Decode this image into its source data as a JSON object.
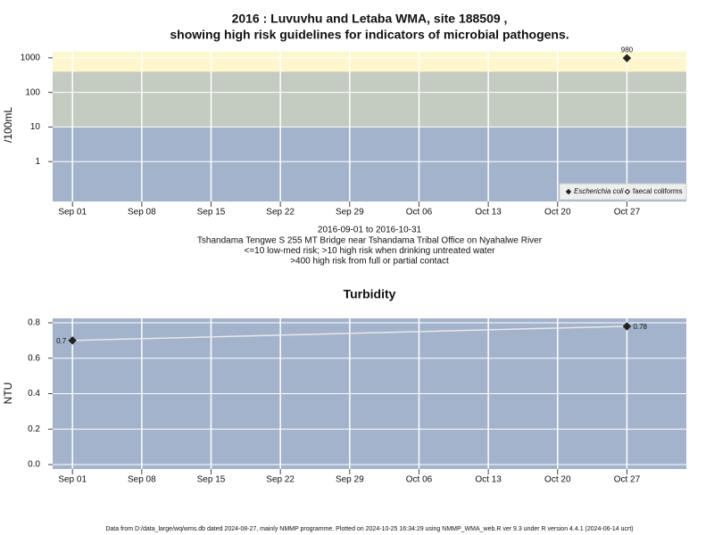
{
  "chart_data": [
    {
      "type": "scatter",
      "title_lines": [
        "2016 : Luvuvhu and Letaba WMA, site 188509 ,",
        "showing high risk guidelines for indicators of microbial pathogens."
      ],
      "ylabel": "/100mL",
      "notes": [
        "2016-09-01 to 2016-10-31",
        "Tshandama Tengwe S 255 MT Bridge near Tshandama Tribal Office on Nyahalwe River",
        "<=10 low-med risk; >10 high risk when drinking untreated water",
        ">400 high risk from full or partial contact"
      ],
      "yscale": "log",
      "ylim": [
        0.07,
        1500
      ],
      "yticks": [
        1,
        10,
        100,
        1000
      ],
      "thresholds": [
        10,
        400
      ],
      "band_colors": [
        "#a3b3cc",
        "#c4ccc1",
        "#fef6cc"
      ],
      "xlim": [
        "2016-08-30",
        "2016-11-02"
      ],
      "xticks": [
        {
          "value": "2016-09-01",
          "label": "Sep 01"
        },
        {
          "value": "2016-09-08",
          "label": "Sep 08"
        },
        {
          "value": "2016-09-15",
          "label": "Sep 15"
        },
        {
          "value": "2016-09-22",
          "label": "Sep 22"
        },
        {
          "value": "2016-09-29",
          "label": "Sep 29"
        },
        {
          "value": "2016-10-06",
          "label": "Oct 06"
        },
        {
          "value": "2016-10-13",
          "label": "Oct 13"
        },
        {
          "value": "2016-10-20",
          "label": "Oct 20"
        },
        {
          "value": "2016-10-27",
          "label": "Oct 27"
        }
      ],
      "x": [
        "2016-10-27"
      ],
      "series": [
        {
          "name": "Escherichia coli",
          "color": "#222222",
          "marker": "filled",
          "values": [
            980
          ]
        },
        {
          "name": "faecal coliforms",
          "color": "#222222",
          "marker": "open",
          "values": [
            null
          ]
        }
      ],
      "grid": true,
      "legend": "bottom-right"
    },
    {
      "type": "line",
      "title": "Turbidity",
      "ylabel": "NTU",
      "plot_color": "#a3b3cc",
      "ylim": [
        -0.025,
        0.825
      ],
      "yticks": [
        {
          "value": 0,
          "label": "0.0"
        },
        0.2,
        0.4,
        0.6,
        0.8
      ],
      "xlim": [
        "2016-08-30",
        "2016-11-02"
      ],
      "xticks": [
        {
          "value": "2016-09-01",
          "label": "Sep 01"
        },
        {
          "value": "2016-09-08",
          "label": "Sep 08"
        },
        {
          "value": "2016-09-15",
          "label": "Sep 15"
        },
        {
          "value": "2016-09-22",
          "label": "Sep 22"
        },
        {
          "value": "2016-09-29",
          "label": "Sep 29"
        },
        {
          "value": "2016-10-06",
          "label": "Oct 06"
        },
        {
          "value": "2016-10-13",
          "label": "Oct 13"
        },
        {
          "value": "2016-10-20",
          "label": "Oct 20"
        },
        {
          "value": "2016-10-27",
          "label": "Oct 27"
        }
      ],
      "x": [
        "2016-09-01",
        "2016-10-27"
      ],
      "series": [
        {
          "name": "Turbidity",
          "color": "#222222",
          "line_color": "#e8e8e8",
          "marker": "filled",
          "values": [
            0.7,
            0.78
          ]
        }
      ],
      "grid": true
    }
  ],
  "footer": "Data from D:/data_large/wq/wms.db dated 2024-08-27, mainly NMMP programme. Plotted on 2024-10-25 16:34:29 using NMMP_WMA_web.R ver 9.3 under R version 4.4.1 (2024-06-14 ucrt)"
}
